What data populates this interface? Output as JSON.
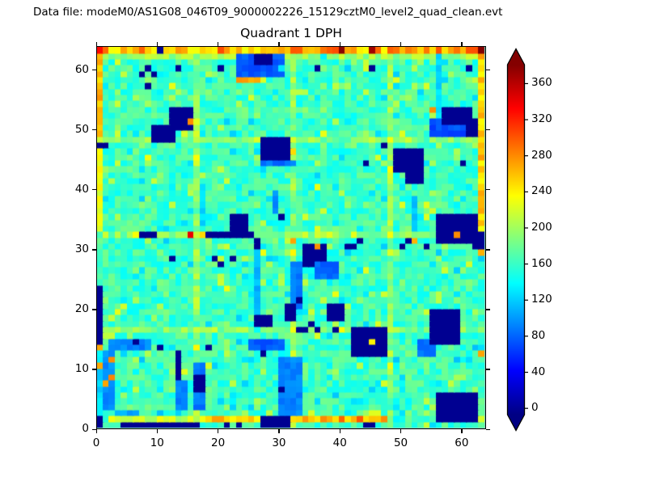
{
  "header": {
    "datafile_label": "Data file: modeM0/AS1G08_046T09_9000002226_15129cztM0_level2_quad_clean.evt"
  },
  "chart_data": {
    "type": "heatmap",
    "title": "Quadrant 1 DPH",
    "xlabel": "",
    "ylabel": "",
    "xlim": [
      0,
      64
    ],
    "ylim": [
      0,
      64
    ],
    "x_ticks": [
      0,
      10,
      20,
      30,
      40,
      50,
      60
    ],
    "y_ticks": [
      0,
      10,
      20,
      30,
      40,
      50,
      60
    ],
    "grid_size": 64,
    "colormap": "jet",
    "colorbar": {
      "ticks": [
        0,
        40,
        80,
        120,
        160,
        200,
        240,
        280,
        320,
        360
      ],
      "vmin": -7,
      "vmax": 381,
      "extend": "both"
    },
    "base": {
      "mean": 162,
      "jitter": 42,
      "speckle_hot_prob": 0.1,
      "speckle_cool_prob": 0.1,
      "seed": 1337
    },
    "seams": {
      "cols": [
        16,
        32,
        48
      ],
      "rows": [
        16,
        32,
        48
      ],
      "boost": 30
    },
    "row_bands": [
      [
        63,
        0,
        63,
        268,
        75
      ],
      [
        62,
        0,
        63,
        198,
        40
      ],
      [
        1,
        2,
        17,
        215,
        40
      ],
      [
        1,
        18,
        47,
        258,
        45
      ]
    ],
    "col_bands": [
      [
        0,
        49,
        63,
        262,
        40
      ],
      [
        0,
        33,
        48,
        230,
        30
      ],
      [
        0,
        24,
        32,
        170,
        35
      ],
      [
        0,
        2,
        12,
        120,
        35
      ],
      [
        63,
        32,
        62,
        252,
        45
      ]
    ],
    "rects": [
      [
        23,
        59,
        8,
        4,
        75
      ],
      [
        26,
        61,
        3,
        2,
        0
      ],
      [
        23,
        58,
        4,
        1,
        272
      ],
      [
        9,
        48,
        4,
        3,
        0
      ],
      [
        12,
        50,
        4,
        4,
        0
      ],
      [
        27,
        44,
        6,
        1,
        85
      ],
      [
        27,
        45,
        5,
        4,
        0
      ],
      [
        55,
        49,
        8,
        3,
        72
      ],
      [
        57,
        51,
        5,
        3,
        0
      ],
      [
        61,
        49,
        2,
        3,
        0
      ],
      [
        49,
        43,
        5,
        4,
        0
      ],
      [
        51,
        41,
        3,
        2,
        0
      ],
      [
        56,
        31,
        6,
        5,
        0
      ],
      [
        59,
        33,
        4,
        3,
        0
      ],
      [
        62,
        30,
        2,
        3,
        0
      ],
      [
        52,
        33,
        1,
        6,
        115
      ],
      [
        34,
        27,
        4,
        4,
        0
      ],
      [
        22,
        33,
        3,
        3,
        0
      ],
      [
        18,
        32,
        8,
        1,
        0
      ],
      [
        7,
        32,
        3,
        1,
        0
      ],
      [
        26,
        19,
        1,
        13,
        112
      ],
      [
        26,
        17,
        3,
        2,
        0
      ],
      [
        32,
        20,
        2,
        8,
        90
      ],
      [
        31,
        18,
        2,
        3,
        0
      ],
      [
        29,
        36,
        1,
        4,
        95
      ],
      [
        17,
        34,
        1,
        7,
        125
      ],
      [
        30,
        2,
        4,
        10,
        92
      ],
      [
        25,
        13,
        6,
        2,
        75
      ],
      [
        2,
        13,
        7,
        2,
        92
      ],
      [
        1,
        3,
        2,
        10,
        96
      ],
      [
        4,
        0,
        13,
        1,
        0
      ],
      [
        3,
        2,
        4,
        1,
        105
      ],
      [
        13,
        3,
        2,
        5,
        92
      ],
      [
        13,
        8,
        1,
        5,
        0
      ],
      [
        16,
        3,
        2,
        8,
        88
      ],
      [
        16,
        6,
        2,
        3,
        0
      ],
      [
        36,
        25,
        4,
        3,
        82
      ],
      [
        38,
        18,
        3,
        3,
        0
      ],
      [
        42,
        12,
        6,
        5,
        0
      ],
      [
        53,
        12,
        3,
        3,
        85
      ],
      [
        55,
        14,
        5,
        6,
        0
      ],
      [
        56,
        1,
        7,
        5,
        0
      ],
      [
        27,
        0,
        5,
        2,
        0
      ],
      [
        56,
        52,
        1,
        11,
        125
      ],
      [
        0,
        14,
        1,
        10,
        0
      ],
      [
        0,
        0,
        1,
        2,
        0
      ]
    ],
    "cells": [
      [
        13,
        60,
        0
      ],
      [
        20,
        60,
        0
      ],
      [
        36,
        60,
        0
      ],
      [
        45,
        60,
        0
      ],
      [
        61,
        60,
        0
      ],
      [
        8,
        60,
        0
      ],
      [
        7,
        59,
        0
      ],
      [
        9,
        59,
        0
      ],
      [
        8,
        57,
        0
      ],
      [
        0,
        47,
        0
      ],
      [
        1,
        47,
        0
      ],
      [
        44,
        44,
        0
      ],
      [
        60,
        44,
        0
      ],
      [
        47,
        47,
        0
      ],
      [
        12,
        28,
        0
      ],
      [
        19,
        28,
        0
      ],
      [
        20,
        27,
        0
      ],
      [
        22,
        28,
        0
      ],
      [
        30,
        35,
        0
      ],
      [
        33,
        21,
        0
      ],
      [
        27,
        12,
        0
      ],
      [
        6,
        14,
        0
      ],
      [
        10,
        13,
        0
      ],
      [
        18,
        13,
        0
      ],
      [
        30,
        6,
        0
      ],
      [
        21,
        0,
        0
      ],
      [
        23,
        0,
        0
      ],
      [
        44,
        0,
        0
      ],
      [
        45,
        0,
        0
      ],
      [
        63,
        30,
        0
      ],
      [
        63,
        31,
        0
      ],
      [
        41,
        30,
        0
      ],
      [
        42,
        30,
        0
      ],
      [
        43,
        31,
        0
      ],
      [
        50,
        30,
        0
      ],
      [
        51,
        31,
        0
      ],
      [
        54,
        30,
        0
      ],
      [
        33,
        16,
        0
      ],
      [
        34,
        16,
        0
      ],
      [
        36,
        16,
        0
      ],
      [
        39,
        16,
        0
      ],
      [
        35,
        17,
        0
      ],
      [
        26,
        30,
        0
      ],
      [
        26,
        31,
        0
      ],
      [
        10,
        63,
        0
      ],
      [
        40,
        63,
        378
      ],
      [
        45,
        63,
        368
      ],
      [
        63,
        63,
        380
      ],
      [
        0,
        63,
        330
      ],
      [
        15,
        51,
        280
      ],
      [
        55,
        53,
        278
      ],
      [
        63,
        52,
        270
      ],
      [
        48,
        43,
        235
      ],
      [
        59,
        32,
        280
      ],
      [
        32,
        31,
        270
      ],
      [
        36,
        30,
        278
      ],
      [
        17,
        32,
        250
      ],
      [
        15,
        32,
        340
      ],
      [
        45,
        14,
        240
      ],
      [
        63,
        29,
        265
      ],
      [
        63,
        12,
        270
      ],
      [
        0,
        13,
        268
      ],
      [
        0,
        10,
        268
      ],
      [
        2,
        11,
        280
      ],
      [
        2,
        8,
        282
      ],
      [
        1,
        7,
        270
      ],
      [
        19,
        1,
        272
      ],
      [
        20,
        1,
        272
      ],
      [
        40,
        1,
        295
      ],
      [
        43,
        1,
        300
      ],
      [
        52,
        31,
        265
      ],
      [
        39,
        22,
        228
      ],
      [
        30,
        60,
        130
      ],
      [
        37,
        62,
        135
      ]
    ]
  }
}
